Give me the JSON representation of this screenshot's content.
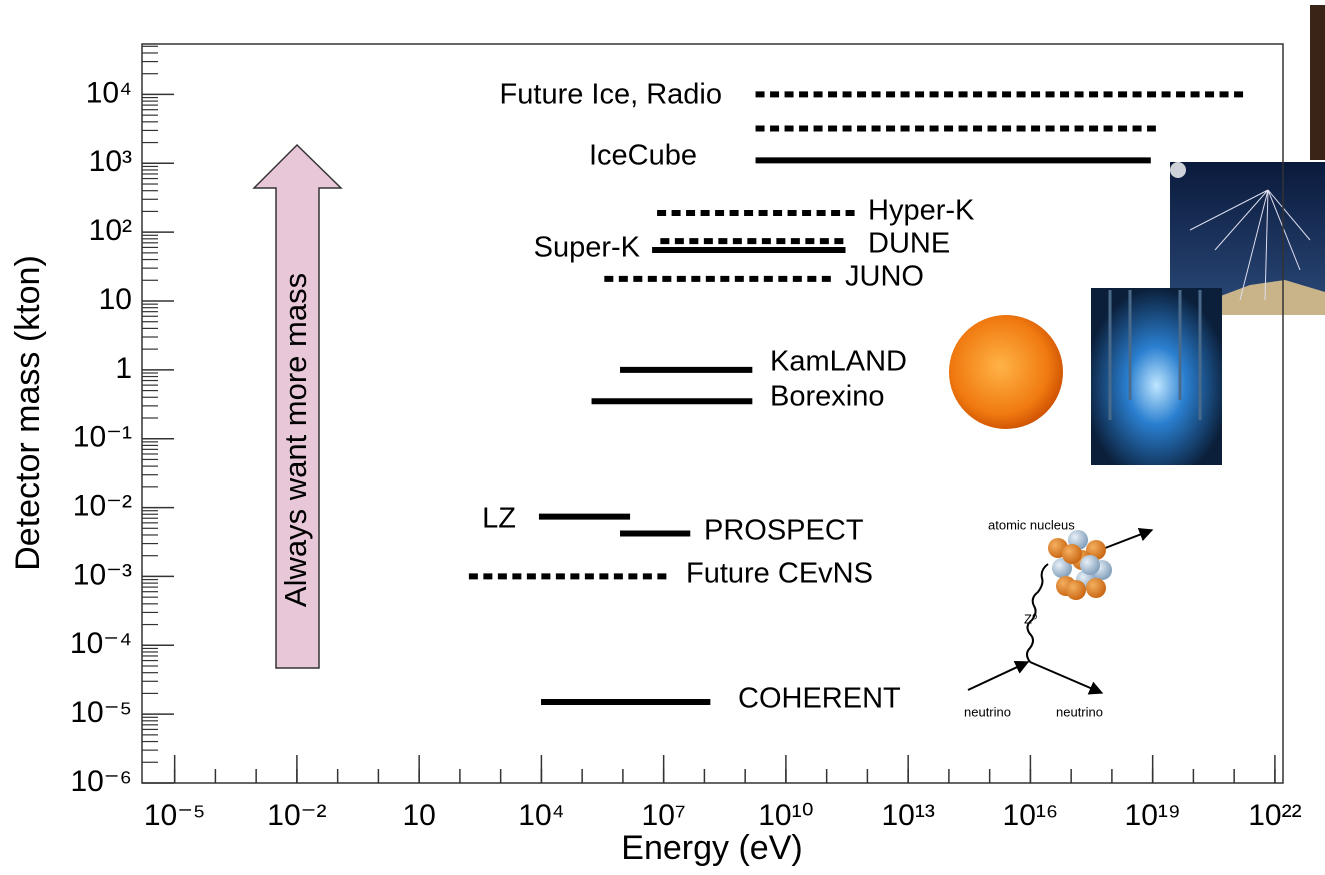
{
  "chart_data": {
    "type": "range",
    "x_label": "Energy (eV)",
    "y_label": "Detector mass (kton)",
    "x_log": true,
    "y_log": true,
    "xlim": [
      1.58e-06,
      1.58e+22
    ],
    "ylim": [
      1e-06,
      54000.0
    ],
    "xticks": [
      {
        "value": 1e-05,
        "label": "10⁻⁵"
      },
      {
        "value": 0.01,
        "label": "10⁻²"
      },
      10,
      {
        "value": 10000.0,
        "label": "10⁴"
      },
      {
        "value": 10000000.0,
        "label": "10⁷"
      },
      {
        "value": 10000000000.0,
        "label": "10¹⁰"
      },
      {
        "value": 10000000000000.0,
        "label": "10¹³"
      },
      {
        "value": 1e+16,
        "label": "10¹⁶"
      },
      {
        "value": 1e+19,
        "label": "10¹⁹"
      },
      {
        "value": 1e+22,
        "label": "10²²"
      }
    ],
    "yticks": [
      {
        "value": 1e-06,
        "label": "10⁻⁶"
      },
      {
        "value": 1e-05,
        "label": "10⁻⁵"
      },
      {
        "value": 0.0001,
        "label": "10⁻⁴"
      },
      {
        "value": 0.001,
        "label": "10⁻³"
      },
      {
        "value": 0.01,
        "label": "10⁻²"
      },
      {
        "value": 0.1,
        "label": "10⁻¹"
      },
      1,
      10,
      {
        "value": 100,
        "label": "10²"
      },
      {
        "value": 1000,
        "label": "10³"
      },
      {
        "value": 10000,
        "label": "10⁴"
      }
    ],
    "annotation": "Always want more mass",
    "series": [
      {
        "name": "Future Ice, Radio",
        "style": "dotted",
        "color": "#000000",
        "x": [
          1800000000.0,
          1.7e+21
        ],
        "y": 10000
      },
      {
        "style": "dotted",
        "color": "#000000",
        "x": [
          1800000000.0,
          1.2e+19
        ],
        "y": 3200
      },
      {
        "name": "IceCube",
        "style": "solid",
        "color": "#000000",
        "x": [
          1800000000.0,
          9e+18
        ],
        "y": 1100
      },
      {
        "name": "Hyper-K",
        "style": "dotted",
        "color": "#000000",
        "x": [
          6900000.0,
          600000000000.0
        ],
        "y": 190
      },
      {
        "name": "DUNE",
        "style": "dotted",
        "color": "#000000",
        "x": [
          8300000.0,
          290000000000.0
        ],
        "y": 74
      },
      {
        "name": "Super-K",
        "style": "solid",
        "color": "#000000",
        "x": [
          5200000.0,
          290000000000.0
        ],
        "y": 55
      },
      {
        "name": "JUNO",
        "style": "dotted",
        "color": "#000000",
        "x": [
          350000.0,
          140000000000.0
        ],
        "y": 21
      },
      {
        "name": "KamLAND",
        "style": "solid",
        "color": "#000000",
        "x": [
          850000.0,
          1500000000.0
        ],
        "y": 1
      },
      {
        "name": "Borexino",
        "style": "solid",
        "color": "#000000",
        "x": [
          170000.0,
          1500000000.0
        ],
        "y": 0.35
      },
      {
        "name": "LZ",
        "style": "solid",
        "color": "#000000",
        "x": [
          8700.0,
          1500000.0
        ],
        "y": 0.0074
      },
      {
        "name": "PROSPECT",
        "style": "solid",
        "color": "#000000",
        "x": [
          850000.0,
          45000000.0
        ],
        "y": 0.0042
      },
      {
        "name": "Future CEvNS",
        "style": "dotted",
        "color": "#000000",
        "x": [
          166,
          13000000.0
        ],
        "y": 0.001
      },
      {
        "name": "COHERENT",
        "style": "solid",
        "color": "#000000",
        "x": [
          9800.0,
          140000000.0
        ],
        "y": 1.5e-05
      }
    ]
  },
  "diagram": {
    "nucleus": "atomic nucleus",
    "boson": "Z⁰",
    "neutrino_in": "neutrino",
    "neutrino_out": "neutrino"
  }
}
